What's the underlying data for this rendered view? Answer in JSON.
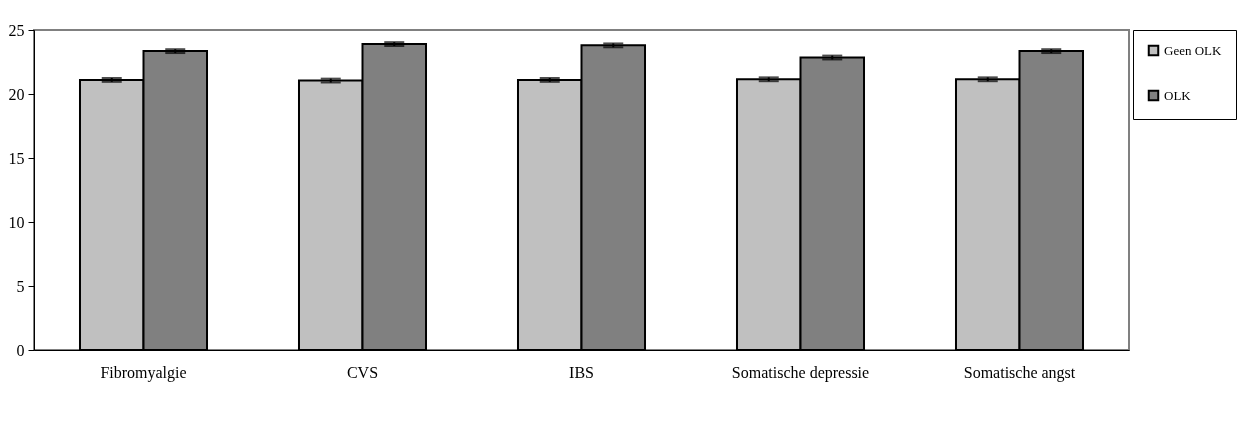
{
  "chart_data": {
    "type": "bar",
    "categories": [
      "Fibromyalgie",
      "CVS",
      "IBS",
      "Somatische depressie",
      "Somatische angst"
    ],
    "series": [
      {
        "name": "Geen OLK",
        "color": "#c0c0c0",
        "values": [
          21.1,
          21.05,
          21.1,
          21.15,
          21.15
        ],
        "errors": [
          0.15,
          0.15,
          0.15,
          0.15,
          0.15
        ]
      },
      {
        "name": "OLK",
        "color": "#808080",
        "values": [
          23.35,
          23.9,
          23.8,
          22.85,
          23.35
        ],
        "errors": [
          0.15,
          0.15,
          0.15,
          0.15,
          0.15
        ]
      }
    ],
    "ylim": [
      0,
      25
    ],
    "yticks": [
      0,
      5,
      10,
      15,
      20,
      25
    ],
    "grid": false,
    "legend": "right"
  }
}
